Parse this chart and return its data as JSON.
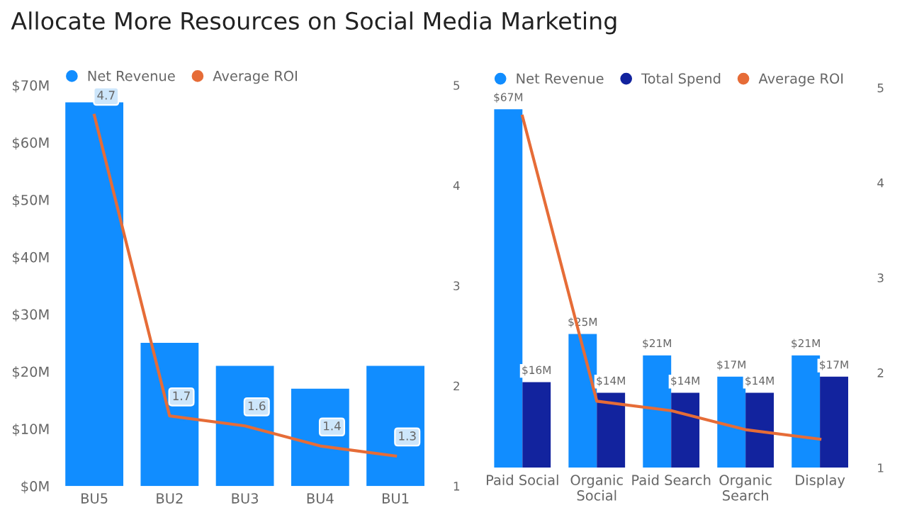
{
  "chart_data": [
    {
      "type": "bar",
      "title": "Allocate More Resources on Social Media Marketing",
      "categories": [
        "BU5",
        "BU2",
        "BU3",
        "BU4",
        "BU1"
      ],
      "series": [
        {
          "name": "Net Revenue",
          "color": "#118dff",
          "values": [
            67,
            25,
            21,
            17,
            21
          ]
        },
        {
          "name": "Average ROI",
          "color": "#e66c37",
          "type": "line",
          "axis": "y2",
          "values": [
            4.7,
            1.7,
            1.6,
            1.4,
            1.3
          ],
          "value_labels": [
            "4.7",
            "1.7",
            "1.6",
            "1.4",
            "1.3"
          ]
        }
      ],
      "ylim": [
        0,
        70
      ],
      "yticks": [
        {
          "value": 0,
          "label": "$0M"
        },
        {
          "value": 10,
          "label": "$10M"
        },
        {
          "value": 20,
          "label": "$20M"
        },
        {
          "value": 30,
          "label": "$30M"
        },
        {
          "value": 40,
          "label": "$40M"
        },
        {
          "value": 50,
          "label": "$50M"
        },
        {
          "value": 60,
          "label": "$60M"
        },
        {
          "value": 70,
          "label": "$70M"
        }
      ],
      "y2lim": [
        1,
        5
      ],
      "y2ticks": [
        1,
        2,
        3,
        4,
        5
      ],
      "legend": "top left",
      "grid": false
    },
    {
      "type": "bar",
      "categories": [
        "Paid Social",
        "Organic\nSocial",
        "Paid Search",
        "Organic\nSearch",
        "Display"
      ],
      "series": [
        {
          "name": "Net Revenue",
          "color": "#118dff",
          "values": [
            67,
            25,
            21,
            17,
            21
          ],
          "value_labels": [
            "$67M",
            "$25M",
            "$21M",
            "$17M",
            "$21M"
          ]
        },
        {
          "name": "Total Spend",
          "color": "#12239e",
          "values": [
            16,
            14,
            14,
            14,
            17
          ],
          "value_labels": [
            "$16M",
            "$14M",
            "$14M",
            "$14M",
            "$17M"
          ]
        },
        {
          "name": "Average ROI",
          "color": "#e66c37",
          "type": "line",
          "axis": "y2",
          "values": [
            4.7,
            1.7,
            1.6,
            1.4,
            1.3
          ]
        }
      ],
      "y2lim": [
        1,
        5
      ],
      "y2ticks": [
        1,
        2,
        3,
        4,
        5
      ],
      "legend": "top left",
      "grid": false
    }
  ]
}
